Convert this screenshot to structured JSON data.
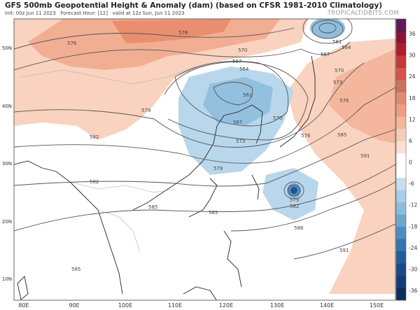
{
  "header": {
    "title": "GFS 500mb Geopotential Height & Anomaly (dam) (based on CFSR 1981-2010 Climatology)",
    "init": "Init: 00z Jun 11 2023",
    "forecast_hour": "Forecast Hour: [12]",
    "valid": "valid at 12z Sun, Jun 11 2023",
    "brand": "TROPICALTIDBITS.COM"
  },
  "axes": {
    "longitudes": [
      "80E",
      "90E",
      "100E",
      "110E",
      "120E",
      "130E",
      "140E",
      "150E"
    ],
    "latitudes": [
      "50N",
      "40N",
      "30N",
      "20N",
      "10N"
    ]
  },
  "colorbar": {
    "ticks": [
      "36",
      "30",
      "24",
      "18",
      "12",
      "6",
      "0",
      "-6",
      "-12",
      "-18",
      "-24",
      "-30",
      "-36"
    ],
    "colors": [
      "#5e1a57",
      "#8a1434",
      "#b01c2e",
      "#c8353a",
      "#d65545",
      "#c9735e",
      "#e38a6c",
      "#ee9e80",
      "#f4b79d",
      "#f8cdb7",
      "#fbe0d2",
      "#ffffff",
      "#ffffff",
      "#c6def0",
      "#a9cde6",
      "#8dbbdb",
      "#6fa6d0",
      "#4b8cc2",
      "#3374b1",
      "#215e9e",
      "#18498a",
      "#143b78",
      "#0e2c5e"
    ]
  },
  "contour_labels": [
    {
      "text": "576"
    },
    {
      "text": "576"
    },
    {
      "text": "579"
    },
    {
      "text": "582"
    },
    {
      "text": "570"
    },
    {
      "text": "567"
    },
    {
      "text": "564"
    },
    {
      "text": "561"
    },
    {
      "text": "567"
    },
    {
      "text": "570"
    },
    {
      "text": "573"
    },
    {
      "text": "576"
    },
    {
      "text": "585"
    },
    {
      "text": "561"
    },
    {
      "text": "564"
    },
    {
      "text": "567"
    },
    {
      "text": "570"
    },
    {
      "text": "573"
    },
    {
      "text": "576"
    },
    {
      "text": "579"
    },
    {
      "text": "582"
    },
    {
      "text": "585"
    },
    {
      "text": "585"
    },
    {
      "text": "588"
    },
    {
      "text": "591"
    },
    {
      "text": "591"
    },
    {
      "text": "579"
    },
    {
      "text": "582"
    },
    {
      "text": "585"
    }
  ]
}
